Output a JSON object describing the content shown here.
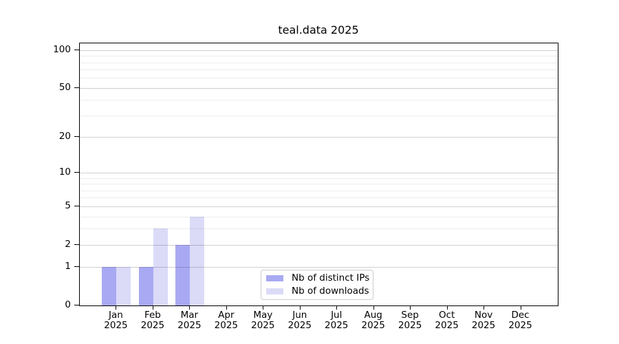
{
  "chart_data": {
    "type": "bar",
    "title": "teal.data 2025",
    "x_categories": [
      "Jan",
      "Feb",
      "Mar",
      "Apr",
      "May",
      "Jun",
      "Jul",
      "Aug",
      "Sep",
      "Oct",
      "Nov",
      "Dec"
    ],
    "x_year": "2025",
    "series": [
      {
        "key": "distinct-ips",
        "name": "Nb of distinct IPs",
        "color": "#a9a9f3",
        "values": [
          1,
          1,
          2,
          0,
          0,
          0,
          0,
          0,
          0,
          0,
          0,
          0
        ]
      },
      {
        "key": "downloads",
        "name": "Nb of downloads",
        "color": "#dbdbf8",
        "values": [
          1,
          3,
          4,
          0,
          0,
          0,
          0,
          0,
          0,
          0,
          0,
          0
        ]
      }
    ],
    "y_axis": {
      "scale": "log1p",
      "ticks": [
        0,
        1,
        2,
        5,
        10,
        20,
        50,
        100
      ],
      "minor_gridlines": [
        3,
        4,
        6,
        7,
        8,
        9,
        30,
        40,
        60,
        70,
        80,
        90
      ],
      "ylim": [
        0,
        110
      ]
    },
    "grid": "horizontal",
    "legend": {
      "position": "lower-center",
      "entries": [
        "Nb of distinct IPs",
        "Nb of downloads"
      ]
    },
    "colors": {
      "axis": "#000000",
      "grid_major": "#d0d0d0",
      "grid_minor": "#ebebeb",
      "background": "#ffffff"
    }
  }
}
